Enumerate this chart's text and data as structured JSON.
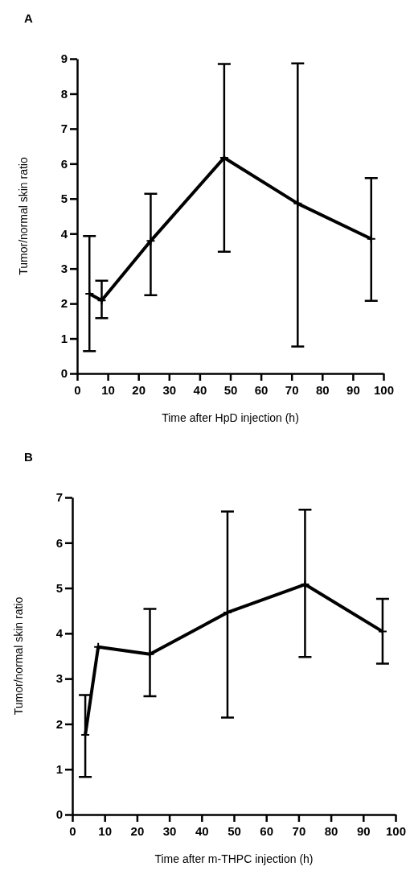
{
  "chart_data": [
    {
      "type": "line",
      "title": "A",
      "xlabel": "Time after HpD injection (h)",
      "ylabel": "Tumor/normal skin ratio",
      "x": [
        4,
        8,
        24,
        48,
        72,
        96
      ],
      "series": [
        {
          "color": "#000000",
          "values": [
            2.28,
            2.09,
            3.79,
            6.17,
            4.86,
            3.85
          ],
          "errors": [
            [
              0.64,
              3.93
            ],
            [
              1.58,
              2.65
            ],
            [
              2.24,
              5.14
            ],
            [
              3.48,
              8.85
            ],
            [
              0.77,
              8.87
            ],
            [
              2.08,
              5.59
            ]
          ]
        }
      ],
      "xlim": [
        0,
        100
      ],
      "xticks": [
        0,
        10,
        20,
        30,
        40,
        50,
        60,
        70,
        80,
        90,
        100
      ],
      "ylim": [
        0,
        9
      ],
      "yticks": [
        0,
        1,
        2,
        3,
        4,
        5,
        6,
        7,
        8,
        9
      ],
      "marker": "cross",
      "line_style": "solid",
      "grid": false
    },
    {
      "type": "line",
      "title": "B",
      "xlabel": "Time after m-THPC injection (h)",
      "ylabel": "Tumor/normal skin ratio",
      "x": [
        4,
        8,
        24,
        48,
        72,
        96
      ],
      "series": [
        {
          "color": "#000000",
          "values": [
            1.76,
            3.7,
            3.54,
            4.46,
            5.08,
            4.04
          ],
          "errors": [
            [
              0.83,
              2.64
            ],
            null,
            [
              2.61,
              4.54
            ],
            [
              2.14,
              6.69
            ],
            [
              3.48,
              6.73
            ],
            [
              3.33,
              4.76
            ]
          ]
        }
      ],
      "xlim": [
        0,
        100
      ],
      "xticks": [
        0,
        10,
        20,
        30,
        40,
        50,
        60,
        70,
        80,
        90,
        100
      ],
      "ylim": [
        0,
        7
      ],
      "yticks": [
        0,
        1,
        2,
        3,
        4,
        5,
        6,
        7
      ],
      "marker": "cross",
      "line_style": "solid",
      "grid": false
    }
  ]
}
